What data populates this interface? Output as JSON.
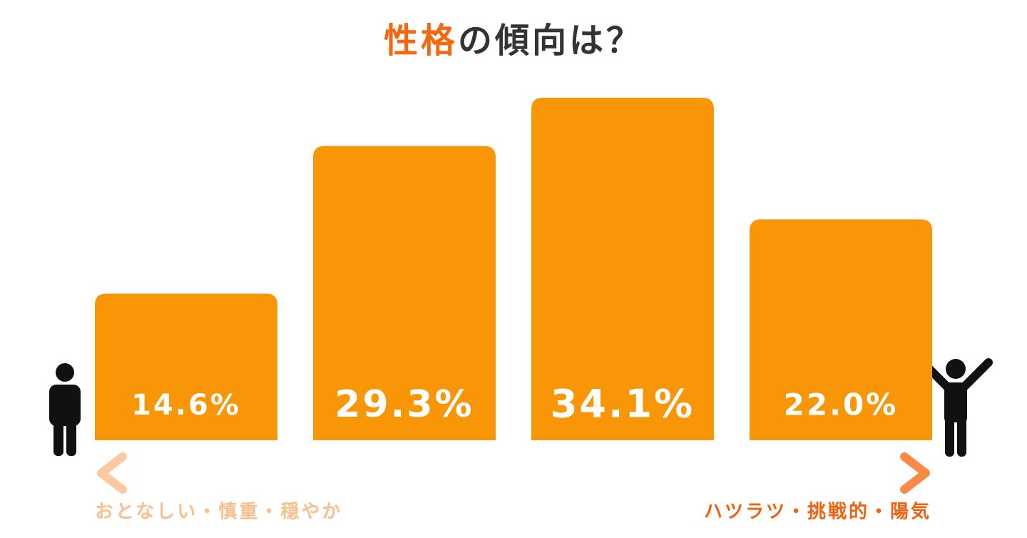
{
  "chart_data": {
    "type": "bar",
    "title": [
      "性格",
      "の傾向は？"
    ],
    "categories": [
      null,
      null,
      null,
      null
    ],
    "values": [
      14.6,
      29.3,
      34.1,
      22.0
    ],
    "value_labels": [
      "14.6%",
      "29.3%",
      "34.1%",
      "22.0%"
    ],
    "color": "#f99608",
    "annotations": [
      "おとなしい・慎重・穏やか",
      "ハツラツ・挑戦的・陽気"
    ]
  }
}
